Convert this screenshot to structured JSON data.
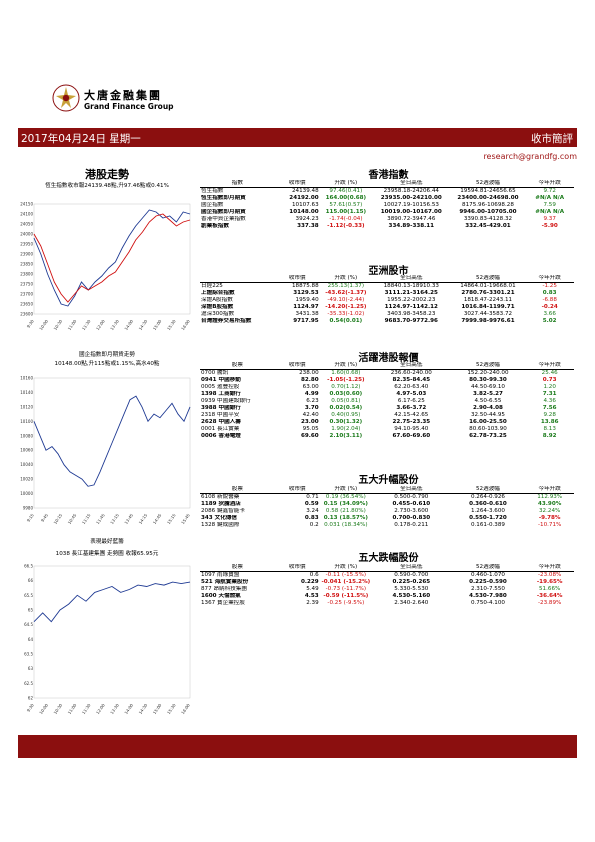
{
  "brand": {
    "name_cn": "大唐金融集團",
    "name_en": "Grand Finance Group"
  },
  "banner": {
    "date": "2017年04月24日 星期一",
    "title": "收市簡評"
  },
  "email": "research@grandfg.com",
  "left": {
    "hsi_title": "港股走勢",
    "hsi_caption": "恆生指數收市報24139.48點,升97.46點或0.41%",
    "hsi_chart_data": {
      "type": "line",
      "yticks": [
        "24150",
        "24100",
        "24050",
        "24000",
        "23950",
        "23900",
        "23850",
        "23800",
        "23750",
        "23700",
        "23650",
        "23600"
      ],
      "xticks": [
        "9:30",
        "10:00",
        "10:30",
        "11:00",
        "11:30",
        "12:00",
        "13:30",
        "14:00",
        "14:30",
        "15:00",
        "15:30",
        "16:00"
      ],
      "ylim": [
        23600,
        24150
      ],
      "series": [
        {
          "color": "#1f3a93",
          "values": [
            23980,
            23900,
            23800,
            23720,
            23650,
            23640,
            23690,
            23760,
            23720,
            23760,
            23790,
            23830,
            23860,
            23930,
            23990,
            24040,
            24080,
            24120,
            24110,
            24080,
            24090,
            24060,
            24110,
            24100
          ]
        },
        {
          "color": "#d01010",
          "values": [
            24000,
            23940,
            23850,
            23760,
            23700,
            23660,
            23700,
            23740,
            23720,
            23740,
            23760,
            23790,
            23810,
            23860,
            23910,
            23970,
            24010,
            24060,
            24090,
            24100,
            24070,
            24040,
            24060,
            24070
          ]
        }
      ]
    },
    "shc_title": "國企指數即月期貨走勢",
    "shc_caption": "10148.00點,升115點或1.15%,高水40點",
    "shc_chart_data": {
      "type": "line",
      "yticks": [
        "10160",
        "10140",
        "10120",
        "10100",
        "10080",
        "10060",
        "10040",
        "10020",
        "10000",
        "9980"
      ],
      "xticks": [
        "9:15",
        "9:45",
        "10:15",
        "10:45",
        "11:15",
        "11:45",
        "13:15",
        "13:45",
        "14:15",
        "14:45",
        "15:15",
        "15:45"
      ],
      "ylim": [
        9980,
        10160
      ],
      "series": [
        {
          "color": "#1f3a93",
          "values": [
            10100,
            10080,
            10060,
            10065,
            10055,
            10040,
            10030,
            10025,
            10020,
            10010,
            10012,
            10030,
            10050,
            10070,
            10090,
            10110,
            10130,
            10135,
            10120,
            10100,
            10110,
            10105,
            10115,
            10125,
            10110,
            10100,
            10120
          ]
        }
      ]
    },
    "stock_title": "表現最好藍籌",
    "stock_caption": "1038 長江基建集團 走勢圖  收報65.95元",
    "stock_chart_data": {
      "type": "line",
      "yticks": [
        "66.5",
        "66",
        "65.5",
        "65",
        "64.5",
        "64",
        "63.5",
        "63",
        "62.5",
        "62"
      ],
      "xticks": [
        "9:30",
        "10:00",
        "10:30",
        "11:00",
        "11:30",
        "12:00",
        "13:30",
        "14:00",
        "14:30",
        "15:00",
        "15:30",
        "16:00"
      ],
      "ylim": [
        62,
        66.5
      ],
      "series": [
        {
          "color": "#1f3a93",
          "values": [
            64.6,
            64.9,
            64.6,
            65.0,
            65.2,
            65.5,
            65.3,
            65.6,
            65.7,
            65.8,
            65.6,
            65.7,
            65.85,
            65.8,
            65.9,
            65.85,
            65.95,
            65.9,
            65.95
          ]
        }
      ]
    }
  },
  "hk_index": {
    "title": "香港指數",
    "headers": [
      "指數",
      "收市價",
      "升跌 (%)",
      "全日高低",
      "52週波幅",
      "今年升跌"
    ],
    "rows": [
      {
        "name": "恆生指數",
        "close": "24139.48",
        "chg": "97.46(0.41)",
        "range": "23958.18-24206.44",
        "wk52": "19594.81-24656.65",
        "ytd": "9.72",
        "cls": "pos",
        "bold": false
      },
      {
        "name": "恆生指數即月期貨",
        "close": "24192.00",
        "chg": "164.00(0.68)",
        "range": "23935.00-24210.00",
        "wk52": "23400.00-24698.00",
        "ytd": "#N/A N/A",
        "cls": "pos",
        "bold": true
      },
      {
        "name": "國企指數",
        "close": "10107.63",
        "chg": "57.61(0.57)",
        "range": "10027.19-10156.53",
        "wk52": "8175.96-10698.28",
        "ytd": "7.59",
        "cls": "pos",
        "bold": false
      },
      {
        "name": "國企指數即月期貨",
        "close": "10148.00",
        "chg": "115.00(1.15)",
        "range": "10019.00-10167.00",
        "wk52": "9946.00-10705.00",
        "ytd": "#N/A N/A",
        "cls": "pos",
        "bold": true
      },
      {
        "name": "香港中資企業指數",
        "close": "3924.23",
        "chg": "-1.74(-0.04)",
        "range": "3890.72-3947.46",
        "wk52": "3390.83-4128.32",
        "ytd": "9.37",
        "cls": "neg",
        "bold": false
      },
      {
        "name": "創業板指數",
        "close": "337.38",
        "chg": "-1.12(-0.33)",
        "range": "334.89-338.11",
        "wk52": "332.45-429.01",
        "ytd": "-5.90",
        "cls": "neg",
        "bold": true
      }
    ]
  },
  "asia": {
    "title": "亞洲股市",
    "headers": [
      "",
      "收市價",
      "升跌 (%)",
      "全日高低",
      "52週波幅",
      "今年升跌"
    ],
    "rows": [
      {
        "name": "日經225",
        "close": "18875.88",
        "chg": "255.13(1.37)",
        "range": "18840.13-18910.33",
        "wk52": "14864.01-19668.01",
        "ytd": "-1.25",
        "cls": "pos",
        "bold": false,
        "ycls": "neg"
      },
      {
        "name": "上證綜合指數",
        "close": "3129.53",
        "chg": "-43.62(-1.37)",
        "range": "3111.21-3164.25",
        "wk52": "2780.76-3301.21",
        "ytd": "0.83",
        "cls": "neg",
        "bold": true,
        "ycls": "pos"
      },
      {
        "name": "深證A股指數",
        "close": "1959.40",
        "chg": "-49.10(-2.44)",
        "range": "1955.22-2002.23",
        "wk52": "1818.47-2243.11",
        "ytd": "-6.88",
        "cls": "neg",
        "bold": false,
        "ycls": "neg"
      },
      {
        "name": "深證B股指數",
        "close": "1124.97",
        "chg": "-14.20(-1.25)",
        "range": "1124.97-1142.12",
        "wk52": "1016.84-1199.71",
        "ytd": "-0.24",
        "cls": "neg",
        "bold": true,
        "ycls": "neg"
      },
      {
        "name": "滬深300指數",
        "close": "3431.38",
        "chg": "-35.33(-1.02)",
        "range": "3403.98-3458.23",
        "wk52": "3027.44-3583.72",
        "ytd": "3.66",
        "cls": "neg",
        "bold": false,
        "ycls": "pos"
      },
      {
        "name": "台灣證券交易所指數",
        "close": "9717.95",
        "chg": "0.54(0.01)",
        "range": "9683.70-9772.96",
        "wk52": "7999.98-9976.61",
        "ytd": "5.02",
        "cls": "pos",
        "bold": true,
        "ycls": "pos"
      }
    ]
  },
  "active": {
    "title": "活躍港股報價",
    "headers": [
      "股票",
      "收市價",
      "升跌 (%)",
      "全日高低",
      "52週波幅",
      "今年升跌"
    ],
    "rows": [
      {
        "name": "0700 騰訊",
        "close": "238.00",
        "chg": "1.60(0.68)",
        "range": "236.60-240.00",
        "wk52": "152.20-240.00",
        "ytd": "25.46",
        "cls": "pos",
        "bold": false
      },
      {
        "name": "0941 中國移動",
        "close": "82.80",
        "chg": "-1.05(-1.25)",
        "range": "82.35-84.45",
        "wk52": "80.30-99.30",
        "ytd": "0.73",
        "cls": "neg",
        "bold": true
      },
      {
        "name": "0005 滙豐控股",
        "close": "63.00",
        "chg": "0.70(1.12)",
        "range": "62.20-63.40",
        "wk52": "44.50-69.10",
        "ytd": "1.20",
        "cls": "pos",
        "bold": false
      },
      {
        "name": "1398 工商銀行",
        "close": "4.99",
        "chg": "0.03(0.60)",
        "range": "4.97-5.03",
        "wk52": "3.82-5.27",
        "ytd": "7.31",
        "cls": "pos",
        "bold": true
      },
      {
        "name": "0939 中國建設銀行",
        "close": "6.23",
        "chg": "0.05(0.81)",
        "range": "6.17-6.25",
        "wk52": "4.50-6.55",
        "ytd": "4.36",
        "cls": "pos",
        "bold": false
      },
      {
        "name": "3988 中國銀行",
        "close": "3.70",
        "chg": "0.02(0.54)",
        "range": "3.66-3.72",
        "wk52": "2.90-4.08",
        "ytd": "7.56",
        "cls": "pos",
        "bold": true
      },
      {
        "name": "2318 中國平安",
        "close": "42.40",
        "chg": "0.40(0.95)",
        "range": "42.15-42.65",
        "wk52": "32.50-44.95",
        "ytd": "9.28",
        "cls": "pos",
        "bold": false
      },
      {
        "name": "2628 中國人壽",
        "close": "23.00",
        "chg": "0.30(1.32)",
        "range": "22.75-23.35",
        "wk52": "16.00-25.50",
        "ytd": "13.86",
        "cls": "pos",
        "bold": true
      },
      {
        "name": "0001 長江實業",
        "close": "95.05",
        "chg": "1.90(2.04)",
        "range": "94.10-95.40",
        "wk52": "80.60-103.90",
        "ytd": "8.13",
        "cls": "pos",
        "bold": false
      },
      {
        "name": "0006 香港電燈",
        "close": "69.60",
        "chg": "2.10(3.11)",
        "range": "67.60-69.60",
        "wk52": "62.78-73.25",
        "ytd": "8.92",
        "cls": "pos",
        "bold": true
      }
    ]
  },
  "gainers": {
    "title": "五大升幅股份",
    "headers": [
      "股票",
      "收市價",
      "升跌 (%)",
      "全日高低",
      "52週波幅",
      "今年升跌"
    ],
    "rows": [
      {
        "name": "6108 新銳醫藥",
        "close": "0.71",
        "chg": "0.19 (36.54%)",
        "range": "0.500-0.790",
        "wk52": "0.264-0.926",
        "ytd": "112.93%",
        "cls": "pos",
        "bold": false,
        "ycls": "pos"
      },
      {
        "name": "1189 狄騰酒店",
        "close": "0.59",
        "chg": "0.15 (34.09%)",
        "range": "0.455-0.610",
        "wk52": "0.360-0.610",
        "ytd": "43.90%",
        "cls": "pos",
        "bold": true,
        "ycls": "pos"
      },
      {
        "name": "2086 鍵鑫智能卡",
        "close": "3.24",
        "chg": "0.58 (21.80%)",
        "range": "2.730-3.600",
        "wk52": "1.264-3.600",
        "ytd": "32.24%",
        "cls": "pos",
        "bold": false,
        "ycls": "pos"
      },
      {
        "name": "343 文化傳信",
        "close": "0.83",
        "chg": "0.13 (18.57%)",
        "range": "0.700-0.830",
        "wk52": "0.550-1.720",
        "ytd": "-9.78%",
        "cls": "pos",
        "bold": true,
        "ycls": "neg"
      },
      {
        "name": "1328 鍵成國際",
        "close": "0.2",
        "chg": "0.031 (18.34%)",
        "range": "0.178-0.211",
        "wk52": "0.161-0.389",
        "ytd": "-10.71%",
        "cls": "pos",
        "bold": false,
        "ycls": "neg"
      }
    ]
  },
  "losers": {
    "title": "五大跌幅股份",
    "headers": [
      "股票",
      "收市價",
      "升跌 (%)",
      "全日高低",
      "52週波幅",
      "今年升跌"
    ],
    "rows": [
      {
        "name": "1097 雨綠寶盟",
        "close": "0.6",
        "chg": "-0.11 (-15.5%)",
        "range": "0.590-0.700",
        "wk52": "0.460-1.070",
        "ytd": "-23.08%",
        "cls": "neg",
        "bold": false,
        "ycls": "neg"
      },
      {
        "name": "521 海航實業股份",
        "close": "0.229",
        "chg": "-0.041 (-15.2%)",
        "range": "0.225-0.265",
        "wk52": "0.225-0.590",
        "ytd": "-19.65%",
        "cls": "neg",
        "bold": true,
        "ycls": "neg"
      },
      {
        "name": "877 昂納科技集團",
        "close": "5.49",
        "chg": "-0.73 (-11.7%)",
        "range": "5.330-5.530",
        "wk52": "2.310-7.550",
        "ytd": "51.66%",
        "cls": "neg",
        "bold": false,
        "ycls": "pos"
      },
      {
        "name": "1600 天倫燃氣",
        "close": "4.53",
        "chg": "-0.59 (-11.5%)",
        "range": "4.530-5.160",
        "wk52": "4.530-7.980",
        "ytd": "-36.64%",
        "cls": "neg",
        "bold": true,
        "ycls": "neg"
      },
      {
        "name": "1367 寶企業控股",
        "close": "2.39",
        "chg": "-0.25 (-9.5%)",
        "range": "2.340-2.640",
        "wk52": "0.750-4.100",
        "ytd": "-23.89%",
        "cls": "neg",
        "bold": false,
        "ycls": "neg"
      }
    ]
  },
  "colors": {
    "brand_red": "#8b0f0f",
    "up": "#1a7a1a",
    "down": "#d01010",
    "line_blue": "#1f3a93"
  }
}
